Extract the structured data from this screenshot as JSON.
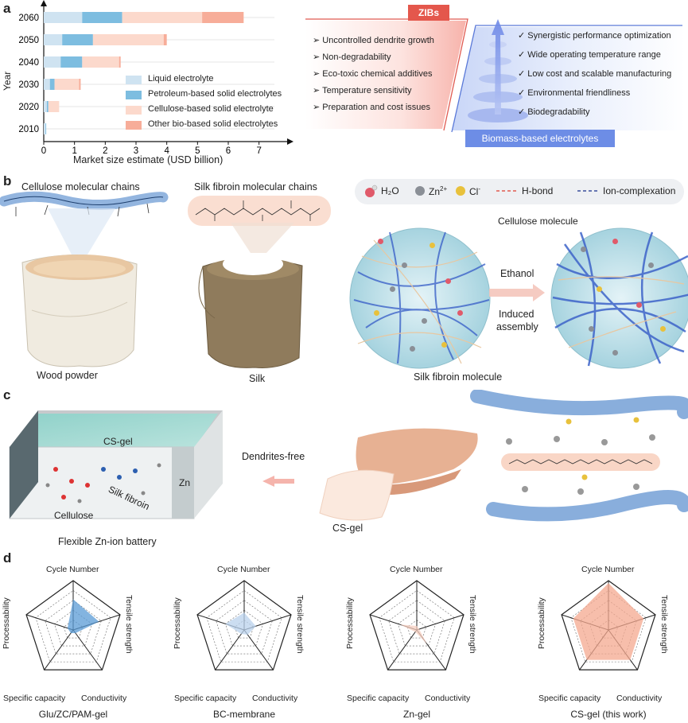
{
  "panel_labels": {
    "a": "a",
    "b": "b",
    "c": "c",
    "d": "d"
  },
  "panel_a": {
    "chart_data": {
      "type": "bar",
      "orientation": "horizontal",
      "stacked": true,
      "ylabel": "Year",
      "xlabel": "Market size estimate (USD billion)",
      "categories": [
        "2060",
        "2050",
        "2040",
        "2030",
        "2020",
        "2010"
      ],
      "x_ticks": [
        "0",
        "1",
        "2",
        "3",
        "4",
        "5",
        "6",
        "7"
      ],
      "xlim": [
        0,
        7.5
      ],
      "series": [
        {
          "name": "Liquid electrolyte",
          "color": "#cfe3f1",
          "values": [
            1.25,
            0.6,
            0.55,
            0.2,
            0.1,
            0.06
          ]
        },
        {
          "name": "Petroleum-based solid electrolytes",
          "color": "#7dbde0",
          "values": [
            1.3,
            1.0,
            0.7,
            0.15,
            0.05,
            0.02
          ]
        },
        {
          "name": "Cellulose-based solid electrolyte",
          "color": "#fcd9cc",
          "values": [
            2.6,
            2.3,
            1.2,
            0.8,
            0.35,
            0
          ]
        },
        {
          "name": "Other bio-based solid electrolytes",
          "color": "#f7ad99",
          "values": [
            1.35,
            0.1,
            0.05,
            0.05,
            0,
            0
          ]
        }
      ],
      "legend_position": "bottom-right"
    },
    "zibs": {
      "title": "ZIBs",
      "items": [
        "Uncontrolled dendrite growth",
        "Non-degradability",
        "Eco-toxic chemical additives",
        "Temperature sensitivity",
        "Preparation and cost issues"
      ]
    },
    "biomass": {
      "title": "Biomass-based electrolytes",
      "items": [
        "Synergistic performance optimization",
        "Wide operating temperature range",
        "Low cost and scalable manufacturing",
        "Environmental friendliness",
        "Biodegradability"
      ]
    }
  },
  "panel_b": {
    "cellulose_chain_label": "Cellulose molecular chains",
    "silk_chain_label": "Silk fibroin molecular chains",
    "wood_label": "Wood powder",
    "silk_label": "Silk",
    "legend": {
      "h2o": "H₂O",
      "zn": "Zn",
      "zn_sup": "2+",
      "cl": "Cl",
      "cl_sup": "-",
      "hbond": "H-bond",
      "ion": "Ion-complexation"
    },
    "cellulose_molecule": "Cellulose molecule",
    "silk_fibroin_molecule": "Silk fibroin molecule",
    "ethanol": "Ethanol",
    "induced": "Induced",
    "assembly": "assembly"
  },
  "panel_c": {
    "csgel_top": "CS-gel",
    "silk_fibroin": "Silk fibroin",
    "cellulose": "Cellulose",
    "zn": "Zn",
    "battery_label": "Flexible Zn-ion battery",
    "dendrites": "Dendrites-free",
    "csgel_hand": "CS-gel"
  },
  "panel_d": {
    "axes": [
      "Cycle Number",
      "Tensile strength",
      "Conductivity",
      "Specific capacity",
      "Processability"
    ],
    "charts": [
      {
        "name": "Glu/ZC/PAM-gel",
        "color": "#5a9bd5",
        "values": [
          0.62,
          0.55,
          0.08,
          0.08,
          0.12
        ]
      },
      {
        "name": "BC-membrane",
        "color": "#b9d2ec",
        "values": [
          0.35,
          0.25,
          0.12,
          0.1,
          0.4
        ]
      },
      {
        "name": "Zn-gel",
        "color": "#f6cdbf",
        "values": [
          0.08,
          0.05,
          0.35,
          0.05,
          0.35
        ]
      },
      {
        "name": "CS-gel (this work)",
        "color": "#f4a88f",
        "values": [
          0.95,
          0.75,
          0.75,
          0.75,
          0.75
        ]
      }
    ]
  }
}
